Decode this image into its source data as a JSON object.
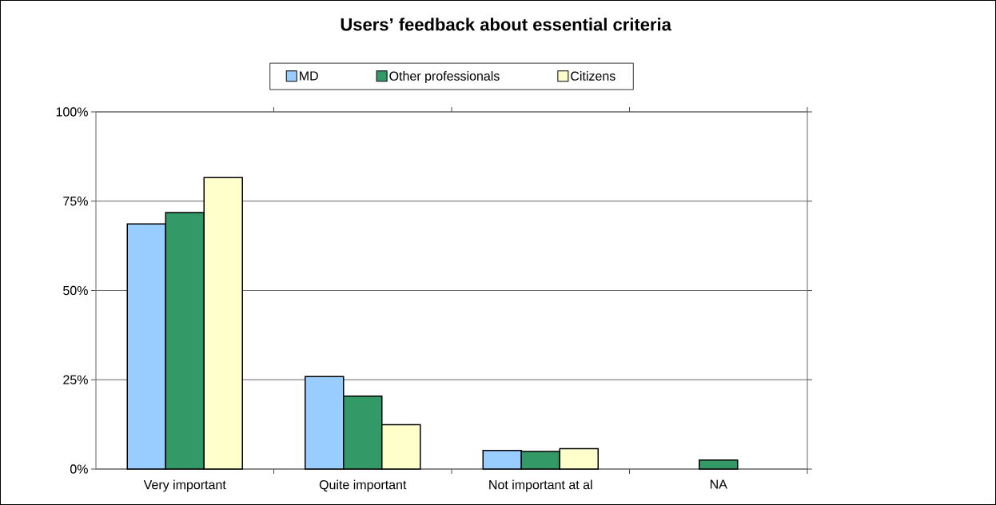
{
  "chart_data": {
    "type": "bar",
    "title": "Users’ feedback about essential criteria",
    "categories": [
      "Very important",
      "Quite important",
      "Not important at al",
      "NA"
    ],
    "series": [
      {
        "name": "MD",
        "color": "#99ccff",
        "values": [
          68.6,
          25.9,
          5.2,
          null
        ]
      },
      {
        "name": "Other professionals",
        "color": "#339966",
        "values": [
          71.8,
          20.4,
          4.9,
          2.5
        ]
      },
      {
        "name": "Citizens",
        "color": "#ffffcc",
        "values": [
          81.6,
          12.4,
          5.7,
          null
        ]
      }
    ],
    "ylim": [
      0,
      100
    ],
    "yticks": [
      {
        "value": 0,
        "label": "0%"
      },
      {
        "value": 25,
        "label": "25%"
      },
      {
        "value": 50,
        "label": "50%"
      },
      {
        "value": 75,
        "label": "75%"
      },
      {
        "value": 100,
        "label": "100%"
      }
    ],
    "grid": "y",
    "legend": "top"
  }
}
